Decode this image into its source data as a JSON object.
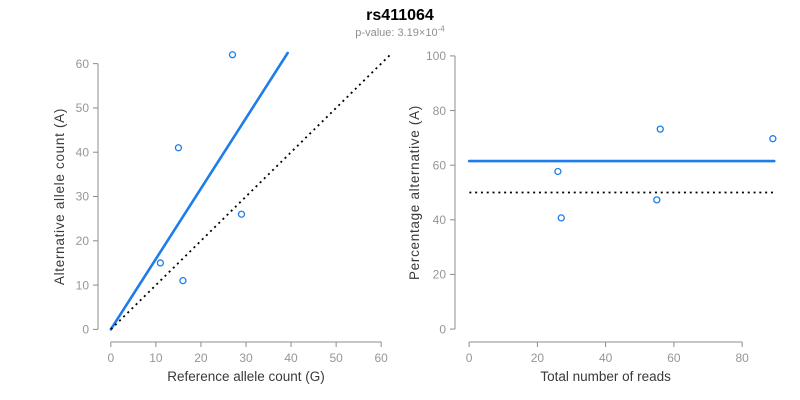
{
  "header": {
    "title": "rs411064",
    "p_value_text": "p-value: 3.19×10",
    "p_value_exponent": "-4"
  },
  "colors": {
    "accent_blue": "#1E7CEB",
    "line_black": "#000000",
    "axis_line": "#8C8C8C",
    "tick_label": "#969696",
    "axis_title": "#3A3A3A",
    "title_color": "#000000",
    "subtitle_color": "#8F8F8F",
    "background": "#FFFFFF"
  },
  "chart_data": [
    {
      "type": "scatter",
      "name": "allele-count-scatter",
      "xlabel": "Reference allele count (G)",
      "ylabel": "Alternative allele count (A)",
      "xlim": [
        0,
        60
      ],
      "ylim": [
        0,
        60
      ],
      "xticks": [
        0,
        10,
        20,
        30,
        40,
        50,
        60
      ],
      "yticks": [
        0,
        10,
        20,
        30,
        40,
        50,
        60
      ],
      "grid": false,
      "legend": "none",
      "points": [
        [
          11,
          15
        ],
        [
          15,
          41
        ],
        [
          16,
          11
        ],
        [
          27,
          62
        ],
        [
          29,
          26
        ]
      ],
      "lines": [
        {
          "name": "fitted-allele-ratio-line",
          "kind": "abline",
          "slope": 1.59,
          "intercept": 0,
          "style": "solid",
          "color": "accent_blue"
        },
        {
          "name": "identity-line",
          "kind": "abline",
          "slope": 1,
          "intercept": 0,
          "style": "dotted",
          "color": "line_black"
        }
      ]
    },
    {
      "type": "scatter",
      "name": "percentage-vs-reads-scatter",
      "xlabel": "Total number of reads",
      "ylabel": "Percentage alternative (A)",
      "xlim": [
        0,
        89
      ],
      "ylim": [
        0,
        100
      ],
      "xticks": [
        0,
        20,
        40,
        60,
        80
      ],
      "yticks": [
        0,
        20,
        40,
        60,
        80,
        100
      ],
      "grid": false,
      "legend": "none",
      "points": [
        [
          26,
          57.7
        ],
        [
          27,
          40.7
        ],
        [
          55,
          47.3
        ],
        [
          56,
          73.2
        ],
        [
          89,
          69.7
        ]
      ],
      "lines": [
        {
          "name": "fitted-percentage-line",
          "kind": "hline",
          "y": 61.5,
          "style": "solid",
          "color": "accent_blue"
        },
        {
          "name": "expected-percentage-line",
          "kind": "hline",
          "y": 50,
          "style": "dotted",
          "color": "line_black"
        }
      ]
    }
  ]
}
